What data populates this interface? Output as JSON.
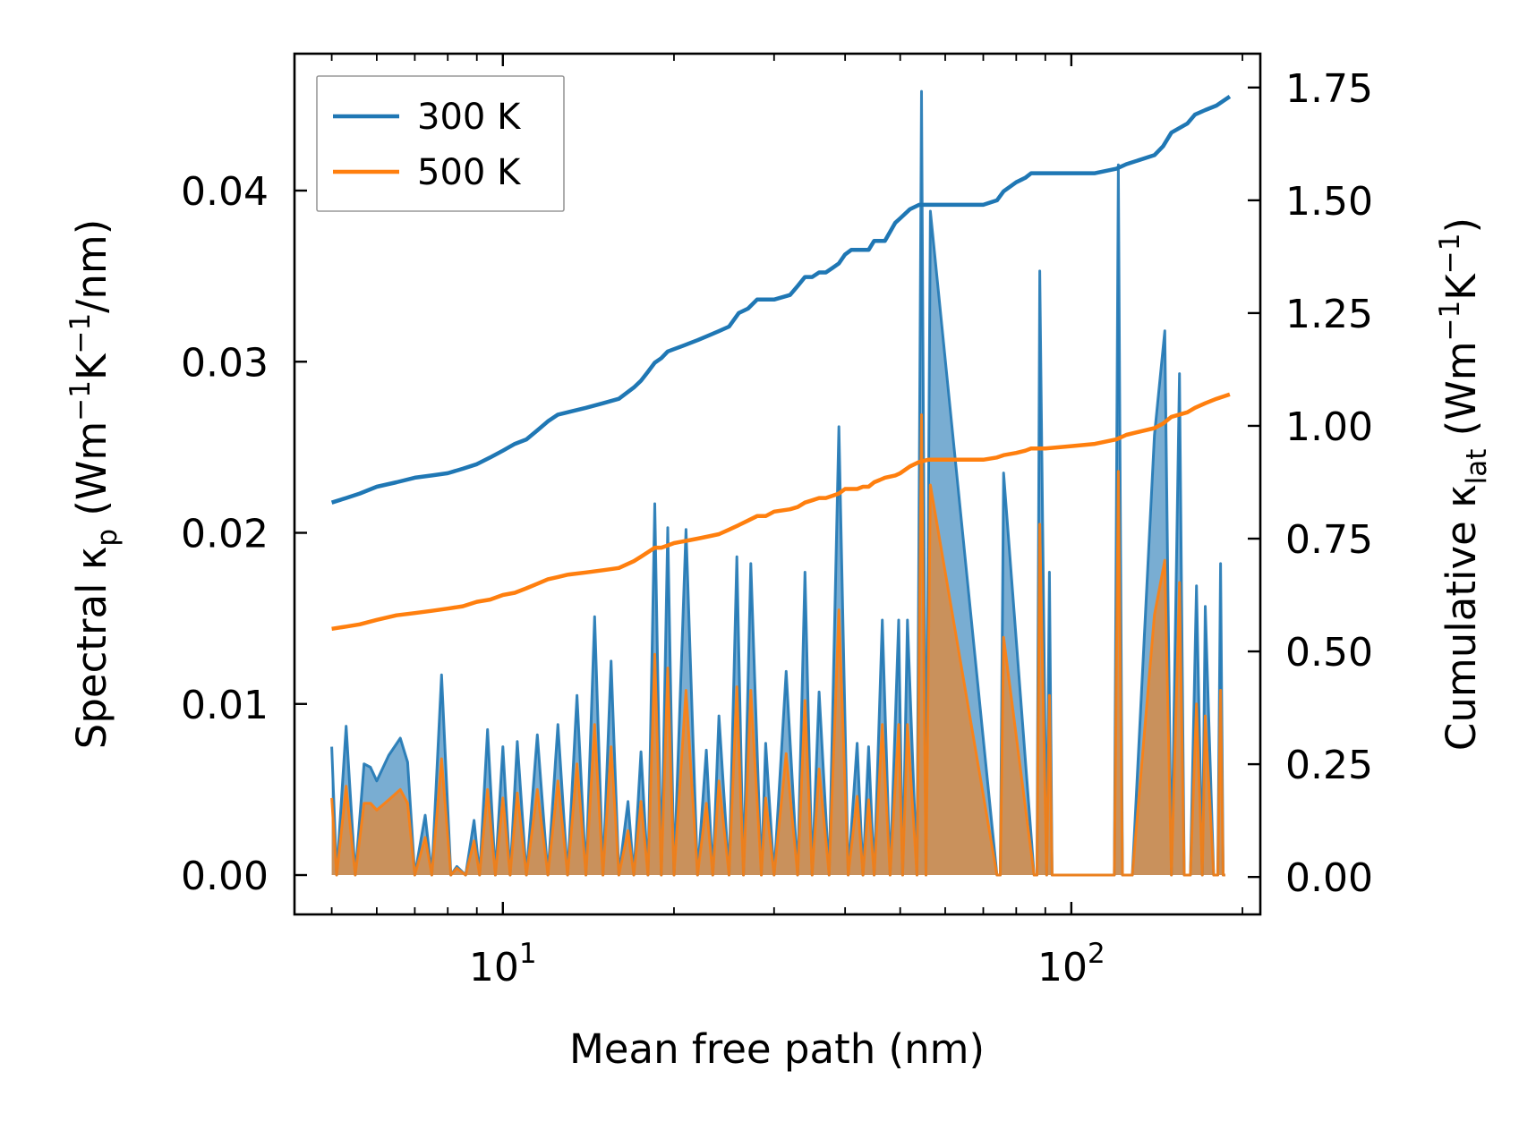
{
  "chart_data": {
    "type": "line",
    "xscale": "log",
    "xlim": [
      4.3,
      215
    ],
    "ylim_left": [
      -0.0023,
      0.048
    ],
    "ylim_right": [
      -0.083,
      1.825
    ],
    "xlabel": "Mean free path (nm)",
    "ylabel_left": {
      "base": "Spectral κ",
      "sub": "p",
      "unit_pre": " (Wm",
      "sup1": "−1",
      "unit_mid": "K",
      "sup2": "−1",
      "unit_post": "/nm)"
    },
    "ylabel_right": {
      "base": "Cumulative κ",
      "sub": "lat",
      "unit_pre": " (Wm",
      "sup1": "−1",
      "unit_mid": "K",
      "sup2": "−1",
      "unit_post": ")"
    },
    "x_ticks": [
      {
        "value": 10,
        "base": "10",
        "exp": "1"
      },
      {
        "value": 100,
        "base": "10",
        "exp": "2"
      }
    ],
    "y_left_ticks": [
      {
        "value": 0.0,
        "label": "0.00"
      },
      {
        "value": 0.01,
        "label": "0.01"
      },
      {
        "value": 0.02,
        "label": "0.02"
      },
      {
        "value": 0.03,
        "label": "0.03"
      },
      {
        "value": 0.04,
        "label": "0.04"
      }
    ],
    "y_right_ticks": [
      {
        "value": 0.0,
        "label": "0.00"
      },
      {
        "value": 0.25,
        "label": "0.25"
      },
      {
        "value": 0.5,
        "label": "0.50"
      },
      {
        "value": 0.75,
        "label": "0.75"
      },
      {
        "value": 1.0,
        "label": "1.00"
      },
      {
        "value": 1.25,
        "label": "1.25"
      },
      {
        "value": 1.5,
        "label": "1.50"
      },
      {
        "value": 1.75,
        "label": "1.75"
      }
    ],
    "legend": {
      "placement": "top-left",
      "entries": [
        {
          "name": "300 K",
          "color": "#1f77b4"
        },
        {
          "name": "500 K",
          "color": "#ff7f0e"
        }
      ]
    },
    "spectral": {
      "x": [
        5.0,
        5.1,
        5.3,
        5.5,
        5.7,
        5.85,
        6.0,
        6.3,
        6.6,
        6.8,
        7.0,
        7.3,
        7.5,
        7.8,
        8.1,
        8.3,
        8.6,
        8.9,
        9.1,
        9.4,
        9.7,
        10.0,
        10.3,
        10.6,
        11.0,
        11.5,
        12.0,
        12.5,
        13.0,
        13.5,
        14.0,
        14.5,
        15.0,
        15.5,
        16.0,
        16.6,
        17.0,
        17.5,
        18.0,
        18.5,
        19.0,
        19.5,
        20.0,
        21.0,
        22.0,
        22.8,
        23.4,
        24.0,
        25.0,
        25.8,
        26.5,
        27.3,
        28.5,
        29.0,
        30.0,
        31.5,
        33.0,
        34.0,
        35.0,
        36.0,
        37.5,
        39.0,
        40.5,
        42.0,
        43.0,
        44.0,
        45.0,
        46.5,
        48.0,
        49.7,
        50.5,
        51.5,
        53.5,
        54.5,
        55.5,
        56.5,
        74.0,
        75.0,
        76.0,
        86.0,
        87.0,
        88.0,
        90.5,
        91.5,
        92.5,
        119.0,
        121.0,
        123.0,
        128.0,
        140.0,
        146.0,
        150.0,
        155.0,
        158.0,
        162.0,
        166.0,
        170.0,
        172.0,
        178.0,
        181.0,
        183.0,
        185.0,
        186.5,
        189.0,
        191.0
      ],
      "kp300": [
        0.0075,
        0.0,
        0.0087,
        0.0,
        0.0065,
        0.0063,
        0.0055,
        0.007,
        0.008,
        0.0066,
        0.0,
        0.0035,
        0.0,
        0.0117,
        0.0,
        0.0005,
        0.0,
        0.0032,
        0.0,
        0.0085,
        0.0,
        0.0075,
        0.0,
        0.0078,
        0.0,
        0.0082,
        0.0,
        0.0088,
        0.0,
        0.0105,
        0.0,
        0.0151,
        0.0,
        0.0125,
        0.0,
        0.0043,
        0.0,
        0.0072,
        0.0,
        0.0217,
        0.0,
        0.0203,
        0.0,
        0.0202,
        0.0,
        0.0073,
        0.0,
        0.0093,
        0.0,
        0.0186,
        0.0,
        0.0182,
        0.0,
        0.0077,
        0.0,
        0.0119,
        0.0,
        0.0177,
        0.0,
        0.0107,
        0.0,
        0.0262,
        0.0,
        0.0077,
        0.0,
        0.0075,
        0.0,
        0.0149,
        0.0,
        0.0149,
        0.0,
        0.0149,
        0.0,
        0.0458,
        0.0,
        0.0388,
        0.0,
        0.0,
        0.0235,
        0.0,
        0.0,
        0.0353,
        0.0,
        0.0177,
        0.0,
        0.0,
        0.0415,
        0.0,
        0.0,
        0.0257,
        0.0318,
        0.0,
        0.0293,
        0.0,
        0.0,
        0.0169,
        0.0,
        0.0157,
        0.0,
        0.0,
        0.0182,
        0.0,
        0.0
      ],
      "kp500": [
        0.0045,
        0.0,
        0.0052,
        0.0,
        0.0042,
        0.0042,
        0.0038,
        0.0044,
        0.005,
        0.0042,
        0.0,
        0.0022,
        0.0,
        0.0068,
        0.0,
        0.0004,
        0.0,
        0.002,
        0.0,
        0.005,
        0.0,
        0.0045,
        0.0,
        0.0048,
        0.0,
        0.005,
        0.0,
        0.0055,
        0.0,
        0.0065,
        0.0,
        0.0088,
        0.0,
        0.0075,
        0.0,
        0.0026,
        0.0,
        0.0043,
        0.0,
        0.0129,
        0.0,
        0.0121,
        0.0,
        0.0108,
        0.0,
        0.0042,
        0.0,
        0.0055,
        0.0,
        0.011,
        0.0,
        0.0108,
        0.0,
        0.0045,
        0.0,
        0.0071,
        0.0,
        0.0102,
        0.0,
        0.0062,
        0.0,
        0.0155,
        0.0,
        0.0046,
        0.0,
        0.0044,
        0.0,
        0.0088,
        0.0,
        0.0088,
        0.0,
        0.0088,
        0.0,
        0.0269,
        0.0,
        0.0228,
        0.0,
        0.0,
        0.0139,
        0.0,
        0.0,
        0.0205,
        0.0,
        0.0105,
        0.0,
        0.0,
        0.0236,
        0.0,
        0.0,
        0.0152,
        0.0184,
        0.0,
        0.0171,
        0.0,
        0.0,
        0.01,
        0.0,
        0.0093,
        0.0,
        0.0,
        0.0108,
        0.0,
        0.0
      ]
    },
    "series": [
      {
        "name": "300 K",
        "color": "#1f77b4",
        "x": [
          5.0,
          5.3,
          5.6,
          6.0,
          6.5,
          7.0,
          7.5,
          8.0,
          8.5,
          9.0,
          9.5,
          10.0,
          10.5,
          11.0,
          11.5,
          12.0,
          12.5,
          13.0,
          14.0,
          15.0,
          16.0,
          17.0,
          17.5,
          18.0,
          18.5,
          19.0,
          19.5,
          20.0,
          21.0,
          22.0,
          23.0,
          24.0,
          25.0,
          26.0,
          27.0,
          28.0,
          29.0,
          30.0,
          32.0,
          33.0,
          34.0,
          35.0,
          36.0,
          37.0,
          38.0,
          39.0,
          40.0,
          41.0,
          42.0,
          43.0,
          44.0,
          45.0,
          46.0,
          47.0,
          49.0,
          50.0,
          52.0,
          54.0,
          56.0,
          60.0,
          70.0,
          74.0,
          76.0,
          80.0,
          83.0,
          85.0,
          88.0,
          90.0,
          100.0,
          110.0,
          120.0,
          125.0,
          140.0,
          145.0,
          150.0,
          160.0,
          165.0,
          172.0,
          180.0,
          185.0,
          190.0
        ],
        "y": [
          0.83,
          0.84,
          0.85,
          0.865,
          0.875,
          0.885,
          0.89,
          0.895,
          0.905,
          0.915,
          0.93,
          0.945,
          0.96,
          0.97,
          0.99,
          1.01,
          1.025,
          1.03,
          1.04,
          1.05,
          1.06,
          1.085,
          1.1,
          1.12,
          1.14,
          1.15,
          1.165,
          1.17,
          1.18,
          1.19,
          1.2,
          1.21,
          1.22,
          1.25,
          1.26,
          1.28,
          1.28,
          1.28,
          1.29,
          1.31,
          1.33,
          1.33,
          1.34,
          1.34,
          1.35,
          1.36,
          1.38,
          1.39,
          1.39,
          1.39,
          1.39,
          1.41,
          1.41,
          1.41,
          1.45,
          1.46,
          1.48,
          1.49,
          1.49,
          1.49,
          1.49,
          1.5,
          1.52,
          1.54,
          1.55,
          1.56,
          1.56,
          1.56,
          1.56,
          1.56,
          1.57,
          1.58,
          1.6,
          1.62,
          1.65,
          1.67,
          1.69,
          1.7,
          1.71,
          1.72,
          1.73
        ]
      },
      {
        "name": "500 K",
        "color": "#ff7f0e",
        "x": [
          5.0,
          5.3,
          5.6,
          6.0,
          6.5,
          7.0,
          7.5,
          8.0,
          8.5,
          9.0,
          9.5,
          10.0,
          10.5,
          11.0,
          11.5,
          12.0,
          12.5,
          13.0,
          14.0,
          15.0,
          16.0,
          17.0,
          17.5,
          18.0,
          18.5,
          19.0,
          19.5,
          20.0,
          21.0,
          22.0,
          23.0,
          24.0,
          25.0,
          26.0,
          27.0,
          28.0,
          29.0,
          30.0,
          32.0,
          33.0,
          34.0,
          35.0,
          36.0,
          37.0,
          38.0,
          39.0,
          40.0,
          41.0,
          42.0,
          43.0,
          44.0,
          45.0,
          46.0,
          47.0,
          49.0,
          50.0,
          52.0,
          54.0,
          56.0,
          60.0,
          70.0,
          74.0,
          76.0,
          80.0,
          83.0,
          85.0,
          88.0,
          90.0,
          100.0,
          110.0,
          120.0,
          125.0,
          140.0,
          145.0,
          150.0,
          160.0,
          165.0,
          172.0,
          180.0,
          185.0,
          190.0
        ],
        "y": [
          0.55,
          0.555,
          0.56,
          0.57,
          0.58,
          0.585,
          0.59,
          0.595,
          0.6,
          0.61,
          0.615,
          0.625,
          0.63,
          0.64,
          0.65,
          0.66,
          0.665,
          0.67,
          0.675,
          0.68,
          0.685,
          0.7,
          0.71,
          0.72,
          0.73,
          0.73,
          0.735,
          0.74,
          0.745,
          0.75,
          0.755,
          0.76,
          0.77,
          0.78,
          0.79,
          0.8,
          0.8,
          0.81,
          0.815,
          0.82,
          0.83,
          0.835,
          0.84,
          0.84,
          0.845,
          0.85,
          0.86,
          0.86,
          0.86,
          0.865,
          0.865,
          0.875,
          0.88,
          0.885,
          0.89,
          0.895,
          0.91,
          0.92,
          0.925,
          0.925,
          0.925,
          0.93,
          0.935,
          0.94,
          0.945,
          0.95,
          0.95,
          0.95,
          0.955,
          0.96,
          0.97,
          0.98,
          0.995,
          1.005,
          1.02,
          1.03,
          1.04,
          1.05,
          1.06,
          1.065,
          1.07
        ]
      }
    ]
  }
}
